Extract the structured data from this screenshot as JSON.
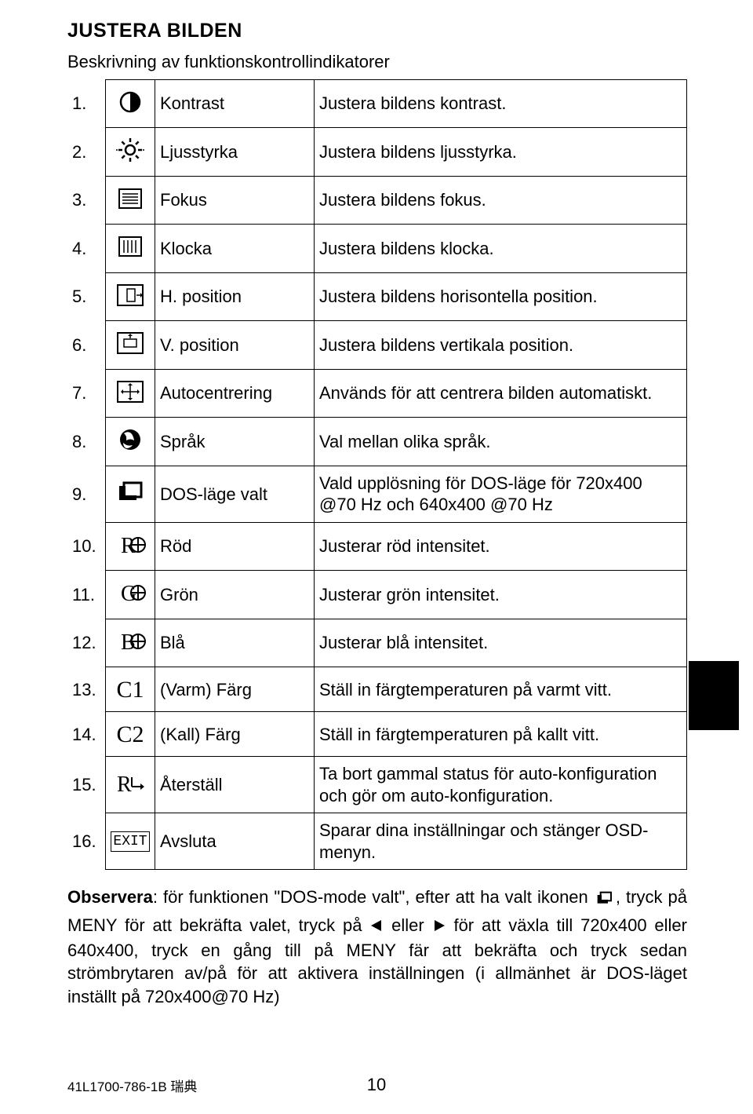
{
  "title": "JUSTERA BILDEN",
  "subtitle": "Beskrivning av funktionskontrollindikatorer",
  "rows": [
    {
      "num": "1.",
      "icon": "contrast",
      "name": "Kontrast",
      "desc": "Justera bildens kontrast."
    },
    {
      "num": "2.",
      "icon": "brightness",
      "name": "Ljusstyrka",
      "desc": "Justera bildens ljusstyrka."
    },
    {
      "num": "3.",
      "icon": "focus",
      "name": "Fokus",
      "desc": "Justera bildens fokus."
    },
    {
      "num": "4.",
      "icon": "clock",
      "name": "Klocka",
      "desc": "Justera bildens klocka."
    },
    {
      "num": "5.",
      "icon": "hpos",
      "name": "H. position",
      "desc": "Justera bildens horisontella position."
    },
    {
      "num": "6.",
      "icon": "vpos",
      "name": "V. position",
      "desc": "Justera bildens vertikala position."
    },
    {
      "num": "7.",
      "icon": "autocenter",
      "name": "Autocentrering",
      "desc": "Används för att centrera bilden automatiskt."
    },
    {
      "num": "8.",
      "icon": "globe",
      "name": "Språk",
      "desc": "Val mellan olika språk."
    },
    {
      "num": "9.",
      "icon": "dos",
      "name": "DOS-läge valt",
      "desc": "Vald upplösning för DOS-läge för 720x400 @70 Hz och 640x400 @70 Hz"
    },
    {
      "num": "10.",
      "icon": "R",
      "name": "Röd",
      "desc": "Justerar röd intensitet."
    },
    {
      "num": "11.",
      "icon": "G",
      "name": "Grön",
      "desc": "Justerar grön intensitet."
    },
    {
      "num": "12.",
      "icon": "B",
      "name": "Blå",
      "desc": "Justerar blå intensitet."
    },
    {
      "num": "13.",
      "icon": "C1",
      "name": "(Varm) Färg",
      "desc": "Ställ in färgtemperaturen på varmt vitt."
    },
    {
      "num": "14.",
      "icon": "C2",
      "name": "(Kall) Färg",
      "desc": "Ställ in färgtemperaturen på kallt vitt."
    },
    {
      "num": "15.",
      "icon": "reset",
      "name": "Återställ",
      "desc": "Ta bort gammal status för auto-konfiguration och gör om auto-konfiguration."
    },
    {
      "num": "16.",
      "icon": "exit",
      "name": "Avsluta",
      "desc": "Sparar dina inställningar och stänger OSD-menyn."
    }
  ],
  "note_parts": {
    "p1": "Observera",
    "p2": ": för funktionen \"DOS-mode valt\", efter att ha valt ikonen ",
    "p3": ", tryck på MENY för att bekräfta valet, tryck på ",
    "p4": " eller ",
    "p5": " för att växla till 720x400 eller 640x400, tryck en gång till på MENY fär att bekräfta och tryck sedan strömbrytaren av/på för att aktivera inställningen (i allmänhet är DOS-läget inställt på 720x400@70 Hz)"
  },
  "footer": "41L1700-786-1B 瑞典",
  "page_number": "10",
  "colors": {
    "fg": "#000000",
    "bg": "#ffffff"
  }
}
